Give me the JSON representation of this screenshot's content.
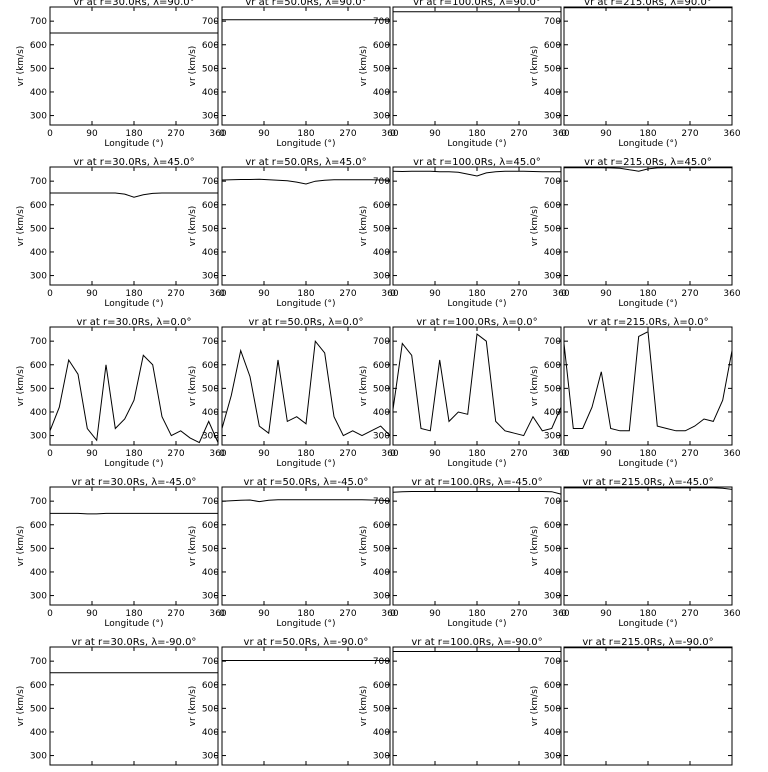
{
  "chart_data": {
    "type": "line",
    "panel_grid": {
      "rows": 5,
      "cols": 4
    },
    "xlabel": "Longitude (°)",
    "ylabel": "vr (km/s)",
    "xlim": [
      0,
      360
    ],
    "ylim": [
      260,
      760
    ],
    "xticks": [
      "0",
      "90",
      "180",
      "270",
      "360"
    ],
    "yticks": [
      "300",
      "400",
      "500",
      "600",
      "700"
    ],
    "x_values": [
      0,
      20,
      40,
      60,
      80,
      100,
      120,
      140,
      160,
      180,
      200,
      220,
      240,
      260,
      280,
      300,
      320,
      340,
      360
    ],
    "panels": [
      {
        "title": "vr at r=30.0Rs, λ=90.0°",
        "values": [
          650,
          650,
          650,
          650,
          650,
          650,
          650,
          650,
          650,
          650,
          650,
          650,
          650,
          650,
          650,
          650,
          650,
          650,
          650
        ]
      },
      {
        "title": "vr at r=50.0Rs, λ=90.0°",
        "values": [
          706,
          706,
          706,
          706,
          706,
          706,
          706,
          706,
          706,
          706,
          706,
          706,
          706,
          706,
          706,
          706,
          706,
          706,
          706
        ]
      },
      {
        "title": "vr at r=100.0Rs, λ=90.0°",
        "values": [
          740,
          740,
          740,
          740,
          740,
          740,
          740,
          740,
          740,
          740,
          740,
          740,
          740,
          740,
          740,
          740,
          740,
          740,
          740
        ]
      },
      {
        "title": "vr at r=215.0Rs, λ=90.0°",
        "values": [
          757,
          757,
          757,
          757,
          757,
          757,
          757,
          757,
          757,
          757,
          757,
          757,
          757,
          757,
          757,
          757,
          757,
          757,
          757
        ]
      },
      {
        "title": "vr at r=30.0Rs, λ=45.0°",
        "values": [
          650,
          650,
          650,
          650,
          650,
          650,
          650,
          650,
          645,
          632,
          642,
          648,
          650,
          650,
          650,
          650,
          650,
          650,
          650
        ]
      },
      {
        "title": "vr at r=50.0Rs, λ=45.0°",
        "values": [
          705,
          706,
          707,
          707,
          708,
          706,
          704,
          702,
          696,
          688,
          700,
          704,
          706,
          706,
          706,
          706,
          706,
          705,
          705
        ]
      },
      {
        "title": "vr at r=100.0Rs, λ=45.0°",
        "values": [
          742,
          741,
          742,
          742,
          742,
          740,
          740,
          738,
          730,
          722,
          735,
          740,
          742,
          742,
          742,
          741,
          740,
          740,
          740
        ]
      },
      {
        "title": "vr at r=215.0Rs, λ=45.0°",
        "values": [
          757,
          757,
          757,
          757,
          757,
          756,
          755,
          748,
          742,
          752,
          756,
          757,
          757,
          757,
          757,
          757,
          757,
          757,
          757
        ]
      },
      {
        "title": "vr at r=30.0Rs, λ=0.0°",
        "values": [
          320,
          420,
          620,
          560,
          330,
          280,
          600,
          330,
          370,
          450,
          640,
          600,
          380,
          300,
          320,
          290,
          270,
          360,
          270
        ]
      },
      {
        "title": "vr at r=50.0Rs, λ=0.0°",
        "values": [
          330,
          470,
          660,
          550,
          340,
          310,
          620,
          360,
          380,
          350,
          700,
          650,
          380,
          300,
          320,
          300,
          320,
          340,
          300
        ]
      },
      {
        "title": "vr at r=100.0Rs, λ=0.0°",
        "values": [
          410,
          690,
          640,
          330,
          320,
          620,
          360,
          400,
          390,
          730,
          700,
          360,
          320,
          310,
          300,
          380,
          320,
          330,
          420
        ]
      },
      {
        "title": "vr at r=215.0Rs, λ=0.0°",
        "values": [
          690,
          330,
          330,
          420,
          570,
          330,
          320,
          320,
          720,
          740,
          340,
          330,
          320,
          320,
          340,
          370,
          360,
          450,
          660
        ]
      }
    ],
    "panels_lower": [
      {
        "title": "vr at r=30.0Rs, λ=-45.0°",
        "values": [
          648,
          648,
          648,
          648,
          646,
          646,
          648,
          648,
          648,
          648,
          648,
          648,
          648,
          648,
          648,
          648,
          648,
          648,
          648
        ]
      },
      {
        "title": "vr at r=50.0Rs, λ=-45.0°",
        "values": [
          700,
          702,
          704,
          705,
          698,
          704,
          706,
          706,
          706,
          706,
          706,
          706,
          706,
          706,
          706,
          706,
          705,
          704,
          702
        ]
      },
      {
        "title": "vr at r=100.0Rs, λ=-45.0°",
        "values": [
          738,
          740,
          741,
          741,
          741,
          741,
          741,
          741,
          741,
          741,
          741,
          741,
          741,
          741,
          741,
          741,
          741,
          740,
          730
        ]
      },
      {
        "title": "vr at r=215.0Rs, λ=-45.0°",
        "values": [
          756,
          756,
          756,
          756,
          756,
          756,
          756,
          756,
          756,
          756,
          756,
          756,
          756,
          756,
          756,
          756,
          756,
          755,
          750
        ]
      },
      {
        "title": "vr at r=30.0Rs, λ=-90.0°",
        "values": [
          651,
          651,
          651,
          651,
          651,
          651,
          651,
          651,
          651,
          651,
          651,
          651,
          651,
          651,
          651,
          651,
          651,
          651,
          651
        ]
      },
      {
        "title": "vr at r=50.0Rs, λ=-90.0°",
        "values": [
          703,
          703,
          703,
          703,
          703,
          703,
          703,
          703,
          703,
          703,
          703,
          703,
          703,
          703,
          703,
          703,
          703,
          703,
          703
        ]
      },
      {
        "title": "vr at r=100.0Rs, λ=-90.0°",
        "values": [
          741,
          741,
          741,
          741,
          741,
          741,
          741,
          741,
          741,
          741,
          741,
          741,
          741,
          741,
          741,
          741,
          741,
          741,
          741
        ]
      },
      {
        "title": "vr at r=215.0Rs, λ=-90.0°",
        "values": [
          757,
          757,
          757,
          757,
          757,
          757,
          757,
          757,
          757,
          757,
          757,
          757,
          757,
          757,
          757,
          757,
          757,
          757,
          757
        ]
      }
    ]
  }
}
